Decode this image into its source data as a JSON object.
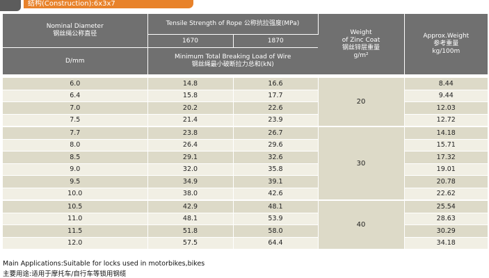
{
  "construction_label": "结构(Construction):6x3x7",
  "headers": {
    "nominal_diameter": "Nominal Diameter\n钢丝绳公称直径",
    "tensile_strength": "Tensile Strength of Rope 公称抗拉强度(MPa)",
    "zinc_coat": "Weight\nof Zinc Coat\n钢丝锌层重量\ng/m²",
    "approx_weight": "Approx.Weight\n参考重量\nkg/100m",
    "grade_1670": "1670",
    "grade_1870": "1870",
    "diameter_unit": "D/mm",
    "breaking_load": "Minimum Total Breaking Load of Wire\n钢丝绳最小破断拉力总和(kN)"
  },
  "rows": [
    {
      "d": "6.0",
      "b1670": "14.8",
      "b1870": "16.6",
      "w": "8.44"
    },
    {
      "d": "6.4",
      "b1670": "15.8",
      "b1870": "17.7",
      "w": "9.44"
    },
    {
      "d": "7.0",
      "b1670": "20.2",
      "b1870": "22.6",
      "w": "12.03"
    },
    {
      "d": "7.5",
      "b1670": "21.4",
      "b1870": "23.9",
      "w": "12.72"
    },
    {
      "d": "7.7",
      "b1670": "23.8",
      "b1870": "26.7",
      "w": "14.18"
    },
    {
      "d": "8.0",
      "b1670": "26.4",
      "b1870": "29.6",
      "w": "15.71"
    },
    {
      "d": "8.5",
      "b1670": "29.1",
      "b1870": "32.6",
      "w": "17.32"
    },
    {
      "d": "9.0",
      "b1670": "32.0",
      "b1870": "35.8",
      "w": "19.01"
    },
    {
      "d": "9.5",
      "b1670": "34.9",
      "b1870": "39.1",
      "w": "20.78"
    },
    {
      "d": "10.0",
      "b1670": "38.0",
      "b1870": "42.6",
      "w": "22.62"
    },
    {
      "d": "10.5",
      "b1670": "42.9",
      "b1870": "48.1",
      "w": "25.54"
    },
    {
      "d": "11.0",
      "b1670": "48.1",
      "b1870": "53.9",
      "w": "28.63"
    },
    {
      "d": "11.5",
      "b1670": "51.8",
      "b1870": "58.0",
      "w": "30.29"
    },
    {
      "d": "12.0",
      "b1670": "57.5",
      "b1870": "64.4",
      "w": "34.18"
    }
  ],
  "zinc_groups": [
    {
      "value": "20",
      "rows": 4
    },
    {
      "value": "30",
      "rows": 6
    },
    {
      "value": "40",
      "rows": 4
    }
  ],
  "notes": {
    "en": "Main Applications:Suitable for locks used in motorbikes,bikes",
    "zh": "主要用途:适用于摩托车/自行车等锁用钢缆"
  },
  "colors": {
    "header_bg": "#707070",
    "row_dark": "#dddac8",
    "row_light": "#f1efe4",
    "banner": "#e8822a"
  }
}
